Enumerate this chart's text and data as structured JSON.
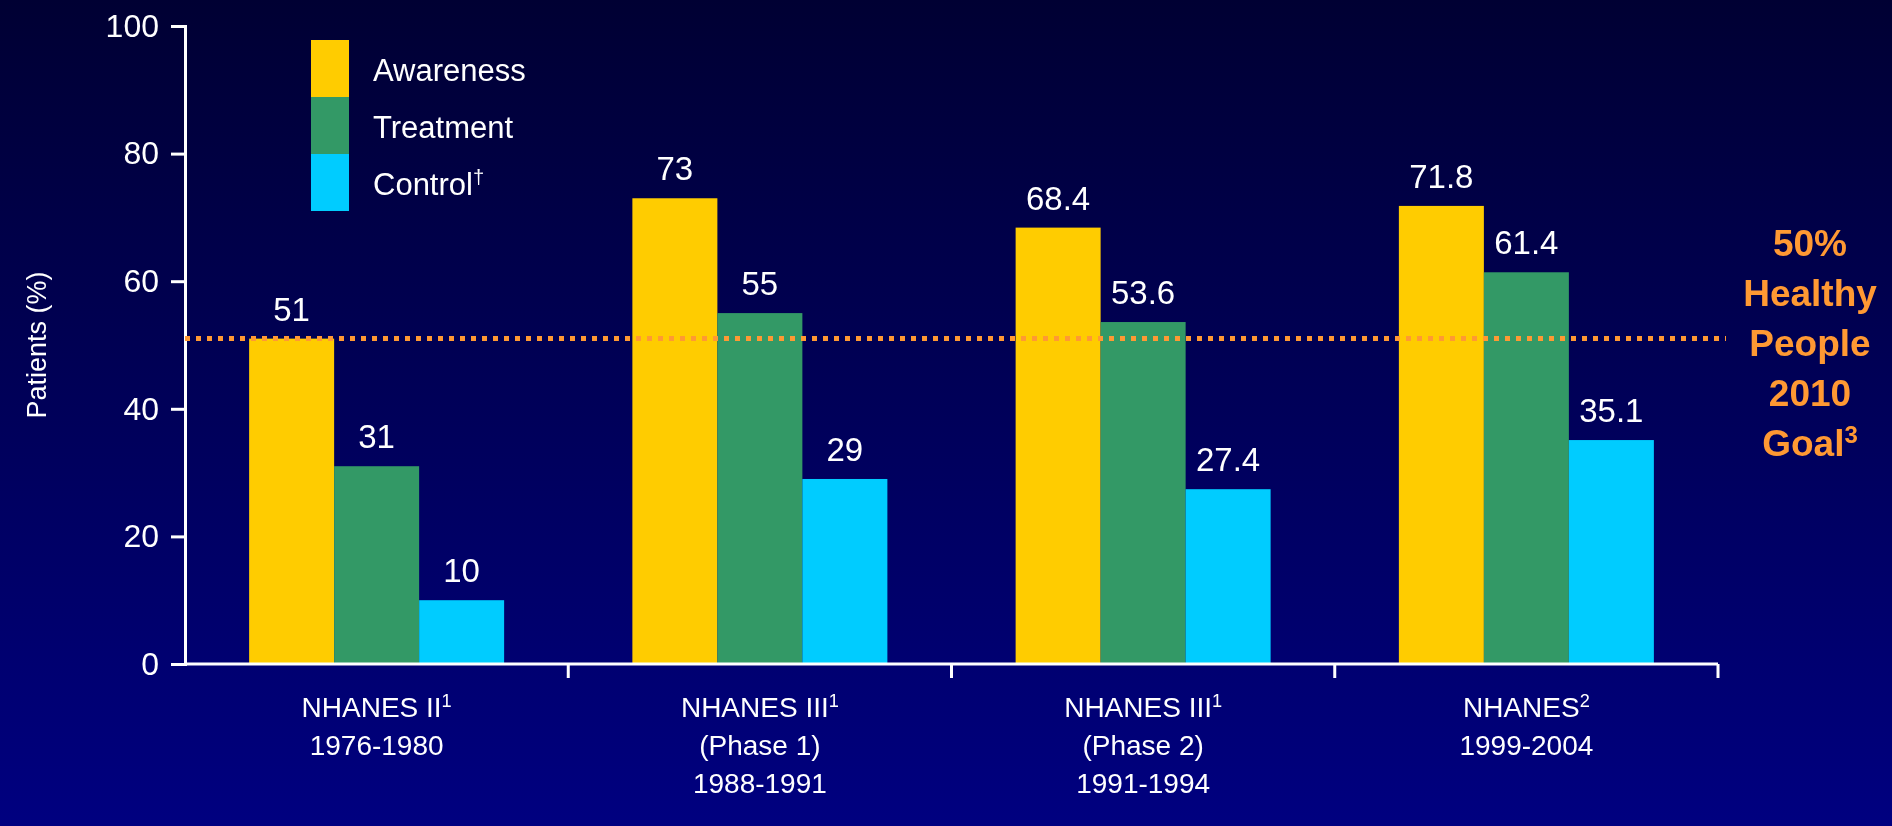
{
  "chart_data": {
    "type": "bar",
    "ylabel": "Patients (%)",
    "categories": [
      "NHANES II$^{1}$\n1976-1980",
      "NHANES III$^{1}$\n(Phase 1)\n1988-1991",
      "NHANES III$^{1}$\n(Phase 2)\n1991-1994",
      "NHANES$^{2}$\n1999-2004"
    ],
    "series": [
      {
        "name": "Awareness",
        "color": "#ffcc00",
        "values": [
          51,
          73,
          68.4,
          71.8
        ]
      },
      {
        "name": "Treatment",
        "color": "#339966",
        "values": [
          31,
          55,
          53.6,
          61.4
        ]
      },
      {
        "name": "Control$^{†}$",
        "color": "#00ccff",
        "values": [
          10,
          29,
          27.4,
          35.1
        ]
      }
    ],
    "ylim": [
      0,
      100
    ],
    "yticks": [
      0,
      20,
      40,
      60,
      80,
      100
    ],
    "data_labels": true,
    "legend": "top left",
    "grid": false,
    "ref_lines": [
      {
        "axis": "y",
        "value": 51,
        "label": "50%\nHealthy\nPeople\n2010\nGoal$^{3}$",
        "color": "#ff9933",
        "line_style": "dotted"
      }
    ]
  }
}
